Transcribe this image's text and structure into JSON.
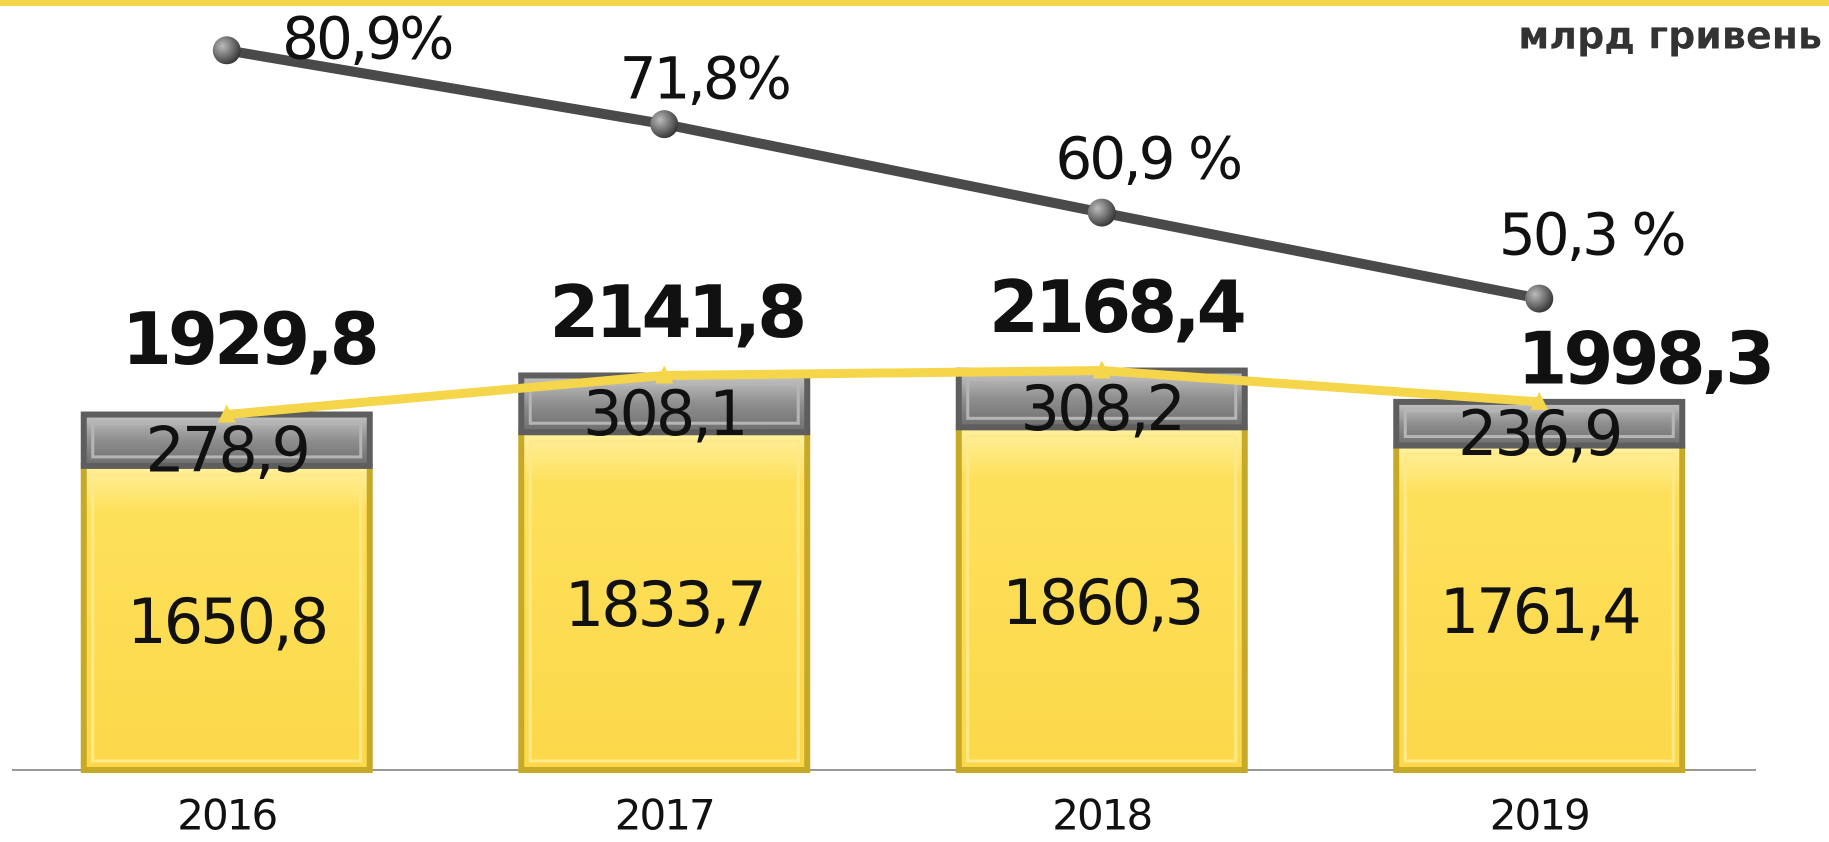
{
  "chart_data": {
    "type": "bar",
    "unit": "млрд гривень",
    "categories": [
      "2016",
      "2017",
      "2018",
      "2019"
    ],
    "series": [
      {
        "color": "#fde05a",
        "values": [
          1650.8,
          1833.7,
          1860.3,
          1761.4
        ],
        "value_labels": [
          "1650,8",
          "1833,7",
          "1860,3",
          "1761,4"
        ]
      },
      {
        "color": "#8e8e8e",
        "values": [
          278.9,
          308.1,
          308.2,
          236.9
        ],
        "value_labels": [
          "278,9",
          "308,1",
          "308,2",
          "236,9"
        ]
      }
    ],
    "totals": {
      "color": "#f5d54a",
      "values": [
        1929.8,
        2141.8,
        2168.4,
        1998.3
      ],
      "value_labels": [
        "1929,8",
        "2141,8",
        "2168,4",
        "1998,3"
      ]
    },
    "share": {
      "color": "#4a4a4a",
      "axis": "y2",
      "values": [
        80.9,
        71.8,
        60.9,
        50.3
      ],
      "value_labels": [
        "80,9%",
        "71,8%",
        "60,9 %",
        "50,3 %"
      ]
    },
    "ylim": [
      0,
      4180
    ],
    "y2lim": [
      -7.8,
      87.1
    ]
  }
}
